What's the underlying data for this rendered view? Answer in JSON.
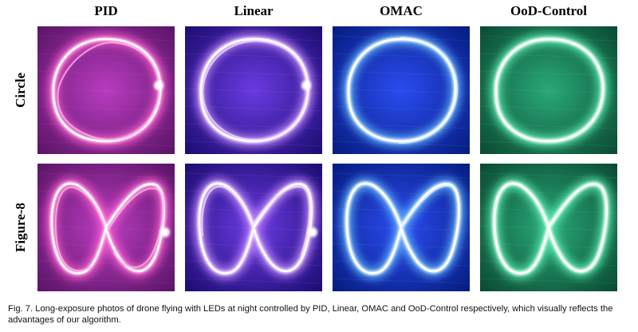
{
  "columns": [
    {
      "label": "PID",
      "tone": "pid"
    },
    {
      "label": "Linear",
      "tone": "linear"
    },
    {
      "label": "OMAC",
      "tone": "omac"
    },
    {
      "label": "OoD-Control",
      "tone": "ood"
    }
  ],
  "rows": [
    {
      "label": "Circle",
      "shape": "circle"
    },
    {
      "label": "Figure-8",
      "shape": "figure8"
    }
  ],
  "caption": "Fig. 7. Long-exposure photos of drone flying with LEDs at night controlled by PID, Linear, OMAC and OoD-Control respectively, which visually reflects the advantages of our algorithm.",
  "palette": {
    "pid": {
      "bg_center": "#b83cbf",
      "bg_edge": "#5a1466",
      "trail": "#ffb8e8",
      "glow": "#ff5fd0"
    },
    "linear": {
      "bg_center": "#6a3ae0",
      "bg_edge": "#1c0c72",
      "trail": "#f0dcff",
      "glow": "#c78cff"
    },
    "omac": {
      "bg_center": "#2a4cf0",
      "bg_edge": "#061c80",
      "trail": "#dff2ff",
      "glow": "#5fb6ff"
    },
    "ood": {
      "bg_center": "#2aa878",
      "bg_edge": "#0a4a32",
      "trail": "#e6fff2",
      "glow": "#5cf0b4"
    }
  }
}
